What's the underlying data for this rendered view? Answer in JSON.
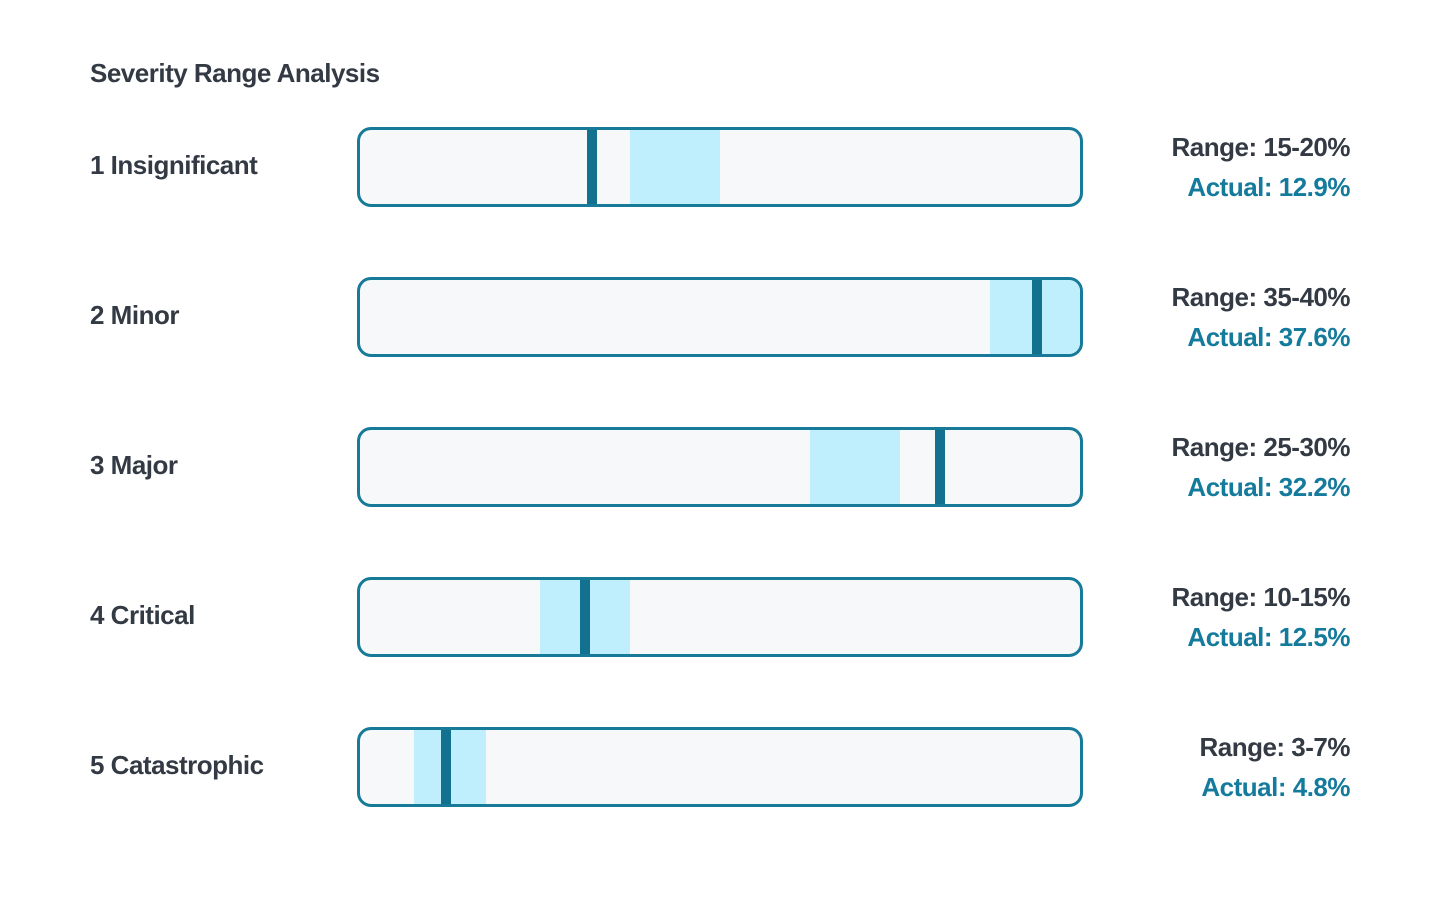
{
  "chart_data": {
    "type": "bar",
    "title": "Severity Range Analysis",
    "xlim": [
      0,
      40
    ],
    "categories": [
      "1 Insignificant",
      "2 Minor",
      "3 Major",
      "4 Critical",
      "5 Catastrophic"
    ],
    "series": [
      {
        "name": "Range",
        "values": [
          [
            15,
            20
          ],
          [
            35,
            40
          ],
          [
            25,
            30
          ],
          [
            10,
            15
          ],
          [
            3,
            7
          ]
        ]
      },
      {
        "name": "Actual",
        "values": [
          12.9,
          37.6,
          32.2,
          12.5,
          4.8
        ]
      }
    ],
    "rows": [
      {
        "label": "1 Insignificant",
        "range_text": "Range: 15-20%",
        "actual_text": "Actual: 12.9%",
        "range_low": 15,
        "range_high": 20,
        "actual": 12.9
      },
      {
        "label": "2 Minor",
        "range_text": "Range: 35-40%",
        "actual_text": "Actual: 37.6%",
        "range_low": 35,
        "range_high": 40,
        "actual": 37.6
      },
      {
        "label": "3 Major",
        "range_text": "Range: 25-30%",
        "actual_text": "Actual: 32.2%",
        "range_low": 25,
        "range_high": 30,
        "actual": 32.2
      },
      {
        "label": "4 Critical",
        "range_text": "Range: 10-15%",
        "actual_text": "Actual: 12.5%",
        "range_low": 10,
        "range_high": 15,
        "actual": 12.5
      },
      {
        "label": "5 Catastrophic",
        "range_text": "Range: 3-7%",
        "actual_text": "Actual: 4.8%",
        "range_low": 3,
        "range_high": 7,
        "actual": 4.8
      }
    ],
    "colors": {
      "track_border": "#177a99",
      "track_fill": "#f6f8fa",
      "range_band": "#bfeefc",
      "actual_marker": "#11718f",
      "text": "#333a44",
      "actual_text": "#147b9c"
    }
  }
}
